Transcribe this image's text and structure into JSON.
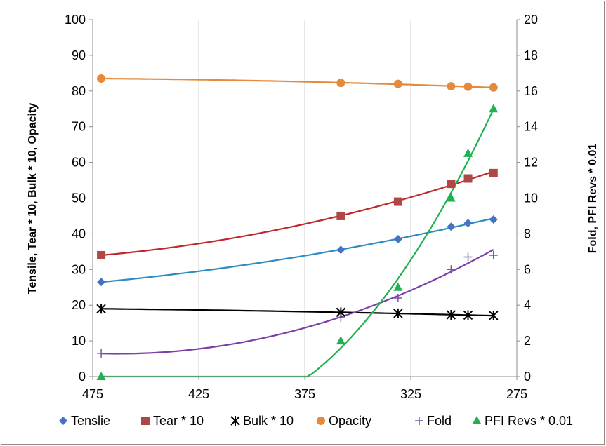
{
  "chart_data": {
    "type": "scatter",
    "title": "",
    "xlabel": "",
    "ylabel_left": "Tensile, Tear * 10, Bulk * 10, Opacity",
    "ylabel_right": "Fold, PFI Revs * 0.01",
    "x_reversed": true,
    "xlim": [
      475,
      275
    ],
    "x_ticks": [
      475,
      425,
      375,
      325,
      275
    ],
    "ylim_left": [
      0,
      100
    ],
    "y_ticks_left": [
      0,
      10,
      20,
      30,
      40,
      50,
      60,
      70,
      80,
      90,
      100
    ],
    "ylim_right": [
      0,
      20
    ],
    "y_ticks_right": [
      0,
      2,
      4,
      6,
      8,
      10,
      12,
      14,
      16,
      18,
      20
    ],
    "grid": "vertical",
    "legend_position": "bottom",
    "x": [
      471,
      358,
      331,
      306,
      298,
      286
    ],
    "series": [
      {
        "name": "Tenslie",
        "axis": "left",
        "marker": "diamond",
        "color": "#4472C4",
        "line_color": "#2E8BC0",
        "values": [
          26.5,
          35.5,
          38.5,
          42,
          43,
          44
        ]
      },
      {
        "name": "Tear * 10",
        "axis": "left",
        "marker": "square",
        "color": "#B04747",
        "line_color": "#C0272D",
        "values": [
          34,
          45,
          49,
          54,
          55.5,
          57
        ]
      },
      {
        "name": "Bulk * 10",
        "axis": "left",
        "marker": "asterisk",
        "color": "#000000",
        "line_color": "#000000",
        "values": [
          19,
          18,
          17.7,
          17.3,
          17.2,
          17.1
        ]
      },
      {
        "name": "Opacity",
        "axis": "left",
        "marker": "circle",
        "color": "#E48A3A",
        "line_color": "#E48A3A",
        "values": [
          83.5,
          82.3,
          82,
          81.3,
          81.2,
          81
        ]
      },
      {
        "name": "Fold",
        "axis": "right",
        "marker": "plus",
        "color": "#7B52A8",
        "line_color": "#7B3FA8",
        "values": [
          1.3,
          3.3,
          4.4,
          6,
          6.7,
          6.8
        ]
      },
      {
        "name": "PFI Revs * 0.01",
        "axis": "right",
        "marker": "triangle",
        "color": "#1FB152",
        "line_color": "#1FB152",
        "values": [
          0,
          2,
          5,
          10,
          12.5,
          15
        ]
      }
    ]
  }
}
